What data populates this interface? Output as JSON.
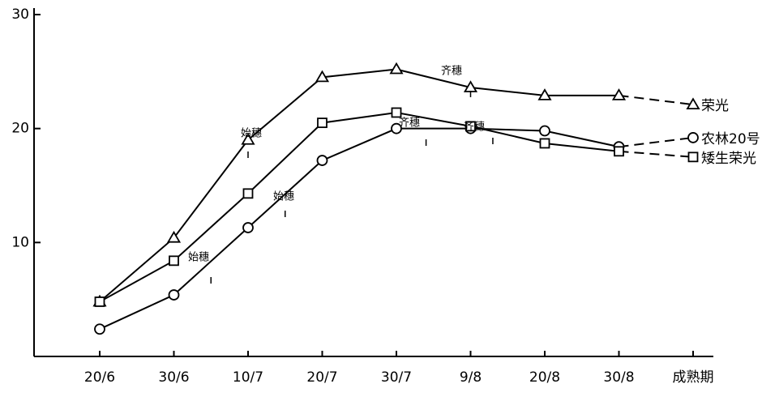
{
  "chart_data": {
    "type": "line",
    "categories": [
      "20/6",
      "30/6",
      "10/7",
      "20/7",
      "30/7",
      "9/8",
      "20/8",
      "30/8",
      "成熟期"
    ],
    "series": [
      {
        "name": "荣光",
        "color": "#000000",
        "marker": "triangle",
        "values": [
          4.8,
          10.4,
          19.0,
          24.5,
          25.2,
          23.6,
          22.9,
          22.9,
          22.1
        ]
      },
      {
        "name": "农林20号",
        "color": "#000000",
        "marker": "circle",
        "values": [
          2.4,
          5.4,
          11.3,
          17.2,
          20.0,
          20.0,
          19.8,
          18.4,
          19.2
        ]
      },
      {
        "name": "矮生荣光",
        "color": "#000000",
        "marker": "square",
        "values": [
          4.8,
          8.4,
          14.3,
          20.5,
          21.4,
          20.2,
          18.7,
          18.0,
          17.5
        ]
      }
    ],
    "ylim": [
      0,
      30
    ],
    "yticks": [
      10,
      20,
      30
    ],
    "annotations": [
      "始穗",
      "始穗",
      "始穗",
      "齐穗",
      "齐穗",
      "齐穗"
    ]
  }
}
